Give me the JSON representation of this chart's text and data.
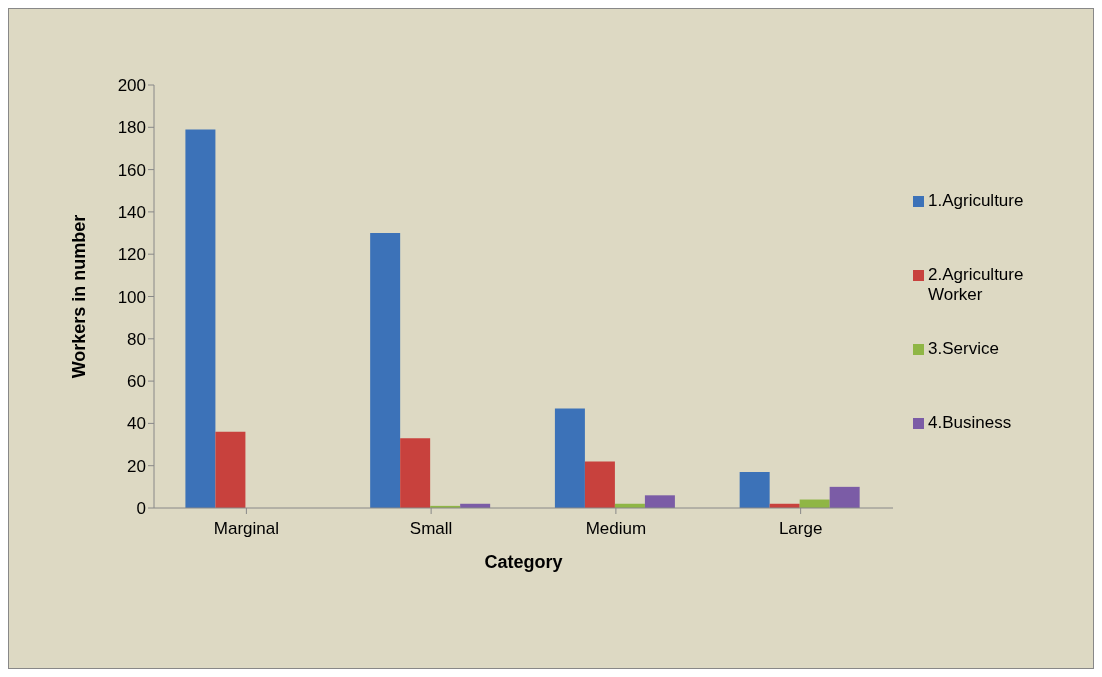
{
  "chart_data": {
    "type": "bar",
    "xlabel": "Category",
    "ylabel": "Workers in number",
    "categories": [
      "Marginal",
      "Small",
      "Medium",
      "Large"
    ],
    "series": [
      {
        "name": "1.Agriculture",
        "color": "#3c72b8",
        "values": [
          179,
          130,
          47,
          17
        ]
      },
      {
        "name": "2.Agriculture Worker",
        "color": "#c8413d",
        "values": [
          36,
          33,
          22,
          2
        ]
      },
      {
        "name": "3.Service",
        "color": "#8fb645",
        "values": [
          0,
          1,
          2,
          4
        ]
      },
      {
        "name": "4.Business",
        "color": "#7b5ca6",
        "values": [
          0,
          2,
          6,
          10
        ]
      }
    ],
    "ylim": [
      0,
      200
    ],
    "yticks": [
      0,
      20,
      40,
      60,
      80,
      100,
      120,
      140,
      160,
      180,
      200
    ],
    "grid": false,
    "legend": "right"
  }
}
